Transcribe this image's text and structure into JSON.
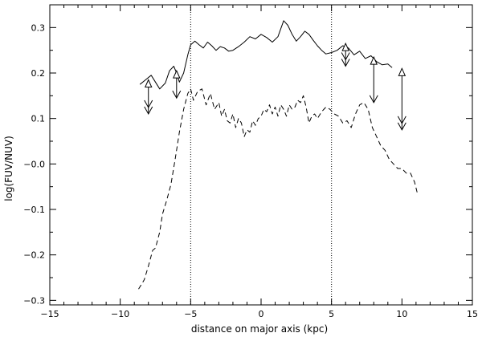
{
  "chart_data": {
    "type": "line",
    "xlabel": "distance on major axis (kpc)",
    "ylabel": "log(FUV/NUV)",
    "xlim": [
      -15,
      15
    ],
    "ylim": [
      -0.31,
      0.35
    ],
    "x_ticks": [
      -15,
      -10,
      -5,
      0,
      5,
      10,
      15
    ],
    "x_tick_labels": [
      "−15",
      "−10",
      "−5",
      "0",
      "5",
      "10",
      "15"
    ],
    "y_ticks": [
      -0.3,
      -0.2,
      -0.1,
      0.0,
      0.1,
      0.2,
      0.3
    ],
    "y_tick_labels": [
      "−0.3",
      "−0.2",
      "−0.1",
      "−0.0",
      "0.1",
      "0.2",
      "0.3"
    ],
    "vertical_lines": [
      -5,
      5
    ],
    "series": [
      {
        "style": "solid",
        "x": [
          -8.6,
          -8.2,
          -7.8,
          -7.5,
          -7.2,
          -6.8,
          -6.5,
          -6.2,
          -6.0,
          -5.8,
          -5.5,
          -5.2,
          -5.0,
          -4.7,
          -4.4,
          -4.1,
          -3.8,
          -3.5,
          -3.2,
          -2.9,
          -2.6,
          -2.3,
          -2.0,
          -1.6,
          -1.2,
          -0.8,
          -0.4,
          0.0,
          0.4,
          0.8,
          1.2,
          1.6,
          1.9,
          2.2,
          2.5,
          2.8,
          3.1,
          3.4,
          3.7,
          4.0,
          4.3,
          4.6,
          5.0,
          5.4,
          5.8,
          6.2,
          6.6,
          7.0,
          7.4,
          7.8,
          8.2,
          8.6,
          9.0,
          9.3
        ],
        "y": [
          0.175,
          0.185,
          0.195,
          0.18,
          0.165,
          0.178,
          0.205,
          0.215,
          0.2,
          0.18,
          0.2,
          0.24,
          0.262,
          0.27,
          0.262,
          0.255,
          0.268,
          0.26,
          0.25,
          0.258,
          0.255,
          0.248,
          0.25,
          0.258,
          0.268,
          0.28,
          0.275,
          0.285,
          0.278,
          0.268,
          0.28,
          0.315,
          0.305,
          0.285,
          0.27,
          0.28,
          0.292,
          0.285,
          0.272,
          0.26,
          0.25,
          0.242,
          0.245,
          0.25,
          0.26,
          0.255,
          0.24,
          0.248,
          0.232,
          0.238,
          0.225,
          0.218,
          0.22,
          0.212
        ]
      },
      {
        "style": "dashed",
        "x": [
          -8.7,
          -8.3,
          -8.0,
          -7.7,
          -7.5,
          -7.2,
          -7.0,
          -6.7,
          -6.4,
          -6.1,
          -5.8,
          -5.5,
          -5.2,
          -5.0,
          -4.8,
          -4.5,
          -4.2,
          -3.9,
          -3.6,
          -3.3,
          -3.0,
          -2.8,
          -2.6,
          -2.4,
          -2.2,
          -2.0,
          -1.8,
          -1.6,
          -1.4,
          -1.2,
          -1.0,
          -0.8,
          -0.6,
          -0.4,
          -0.2,
          0.0,
          0.2,
          0.4,
          0.6,
          0.8,
          1.0,
          1.2,
          1.4,
          1.6,
          1.8,
          2.0,
          2.2,
          2.4,
          2.6,
          2.8,
          3.0,
          3.2,
          3.4,
          3.6,
          3.8,
          4.0,
          4.3,
          4.6,
          4.9,
          5.2,
          5.5,
          5.8,
          6.1,
          6.4,
          6.7,
          7.0,
          7.3,
          7.6,
          7.9,
          8.2,
          8.5,
          8.8,
          9.1,
          9.4,
          9.7,
          10.0,
          10.3,
          10.6,
          10.9,
          11.1
        ],
        "y": [
          -0.275,
          -0.255,
          -0.225,
          -0.19,
          -0.185,
          -0.15,
          -0.11,
          -0.08,
          -0.045,
          0.01,
          0.07,
          0.12,
          0.155,
          0.165,
          0.14,
          0.16,
          0.165,
          0.13,
          0.155,
          0.12,
          0.135,
          0.105,
          0.12,
          0.095,
          0.09,
          0.11,
          0.08,
          0.1,
          0.09,
          0.06,
          0.075,
          0.07,
          0.095,
          0.085,
          0.1,
          0.105,
          0.12,
          0.115,
          0.13,
          0.11,
          0.125,
          0.105,
          0.13,
          0.12,
          0.105,
          0.13,
          0.12,
          0.125,
          0.14,
          0.135,
          0.15,
          0.125,
          0.09,
          0.105,
          0.11,
          0.1,
          0.115,
          0.125,
          0.12,
          0.11,
          0.105,
          0.09,
          0.095,
          0.08,
          0.11,
          0.13,
          0.135,
          0.12,
          0.08,
          0.06,
          0.04,
          0.03,
          0.01,
          0.0,
          -0.01,
          -0.01,
          -0.02,
          -0.02,
          -0.04,
          -0.065
        ]
      }
    ],
    "arrows": [
      {
        "x": -8,
        "top": 0.185,
        "bottom": 0.11,
        "heads": 2
      },
      {
        "x": -6,
        "top": 0.205,
        "bottom": 0.145,
        "heads": 1
      },
      {
        "x": 6,
        "top": 0.265,
        "bottom": 0.215,
        "heads": 2
      },
      {
        "x": 8,
        "top": 0.235,
        "bottom": 0.135,
        "heads": 1
      },
      {
        "x": 10,
        "top": 0.21,
        "bottom": 0.075,
        "heads": 2
      }
    ]
  }
}
